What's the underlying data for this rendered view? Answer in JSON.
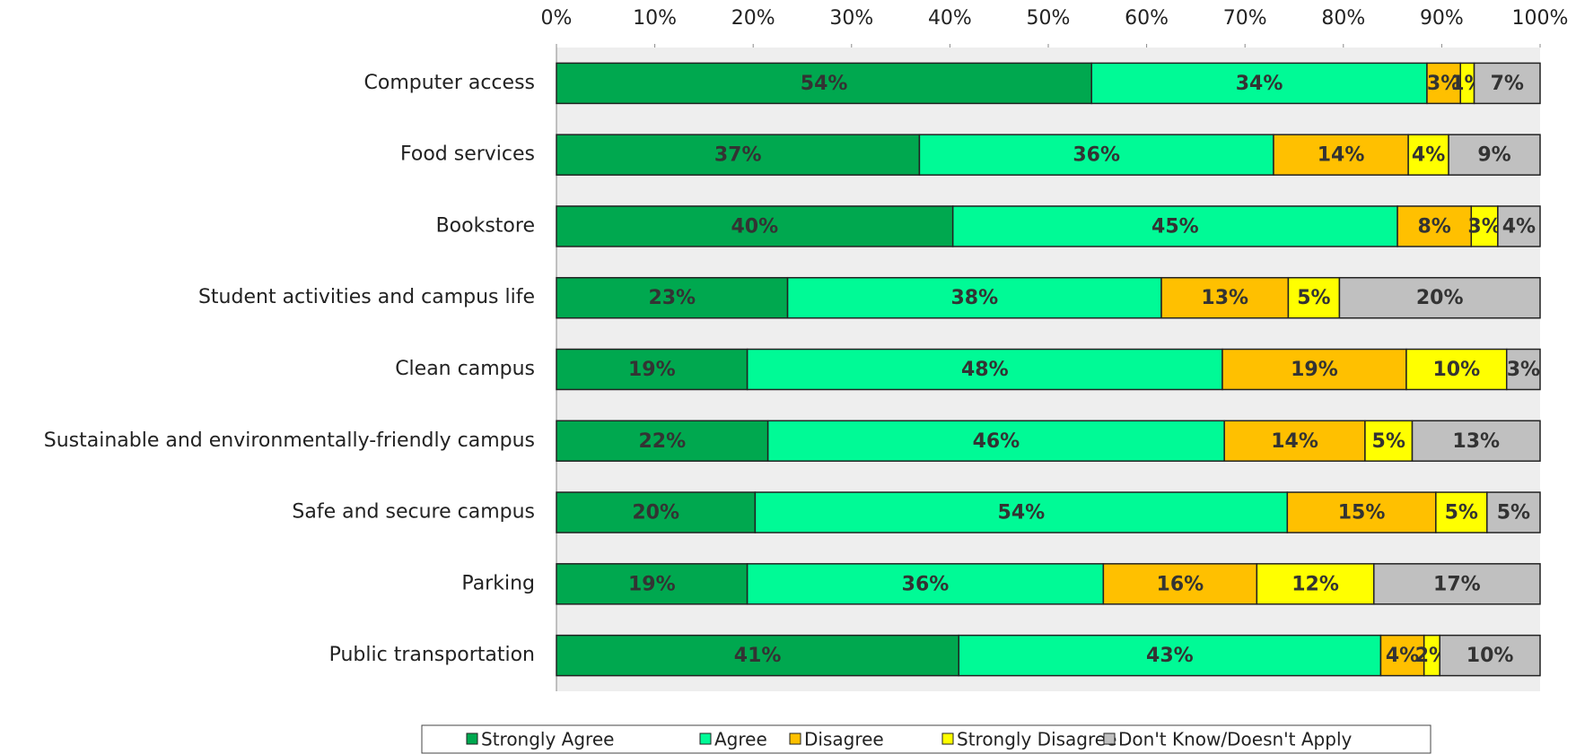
{
  "chart_data": {
    "type": "stacked_bar_horizontal",
    "categories": [
      "Computer access",
      "Food services",
      "Bookstore",
      "Student activities and campus life",
      "Clean campus",
      "Sustainable and environmentally-friendly campus",
      "Safe and secure campus",
      "Parking",
      "Public transportation"
    ],
    "series": [
      {
        "name": "Strongly Agree",
        "color": "#00a84f",
        "values": [
          54.4,
          36.9,
          40.3,
          23.5,
          19.4,
          21.5,
          20.2,
          19.4,
          40.9
        ],
        "value_labels": [
          "54%",
          "37%",
          "40%",
          "23%",
          "19%",
          "22%",
          "20%",
          "19%",
          "41%"
        ]
      },
      {
        "name": "Agree",
        "color": "#00fa96",
        "values": [
          34.1,
          36.0,
          45.2,
          38.0,
          48.3,
          46.4,
          54.1,
          36.2,
          42.9
        ],
        "value_labels": [
          "34%",
          "36%",
          "45%",
          "38%",
          "48%",
          "46%",
          "54%",
          "36%",
          "43%"
        ]
      },
      {
        "name": "Disagree",
        "color": "#ffc000",
        "values": [
          3.4,
          13.7,
          7.5,
          12.9,
          18.7,
          14.3,
          15.1,
          15.6,
          4.4
        ],
        "value_labels": [
          "3%",
          "14%",
          "8%",
          "13%",
          "19%",
          "14%",
          "15%",
          "16%",
          "4%"
        ]
      },
      {
        "name": "Strongly Disagree",
        "color": "#ffff00",
        "values": [
          1.4,
          4.1,
          2.7,
          5.2,
          10.2,
          4.8,
          5.2,
          11.9,
          1.6
        ],
        "value_labels": [
          "1%",
          "4%",
          "3%",
          "5%",
          "10%",
          "5%",
          "5%",
          "12%",
          "2%"
        ]
      },
      {
        "name": "Don't Know/Doesn't Apply",
        "color": "#c0c0c0",
        "values": [
          6.7,
          9.3,
          4.3,
          20.4,
          3.4,
          13.0,
          5.4,
          16.9,
          10.2
        ],
        "value_labels": [
          "7%",
          "9%",
          "4%",
          "20%",
          "3%",
          "13%",
          "5%",
          "17%",
          "10%"
        ]
      }
    ],
    "xlim": [
      0,
      100
    ],
    "xticks": [
      {
        "value": 0,
        "label": "0%"
      },
      {
        "value": 10,
        "label": "10%"
      },
      {
        "value": 20,
        "label": "20%"
      },
      {
        "value": 30,
        "label": "30%"
      },
      {
        "value": 40,
        "label": "40%"
      },
      {
        "value": 50,
        "label": "50%"
      },
      {
        "value": 60,
        "label": "60%"
      },
      {
        "value": 70,
        "label": "70%"
      },
      {
        "value": 80,
        "label": "80%"
      },
      {
        "value": 90,
        "label": "90%"
      },
      {
        "value": 100,
        "label": "100%"
      }
    ],
    "legend": "bottom"
  }
}
